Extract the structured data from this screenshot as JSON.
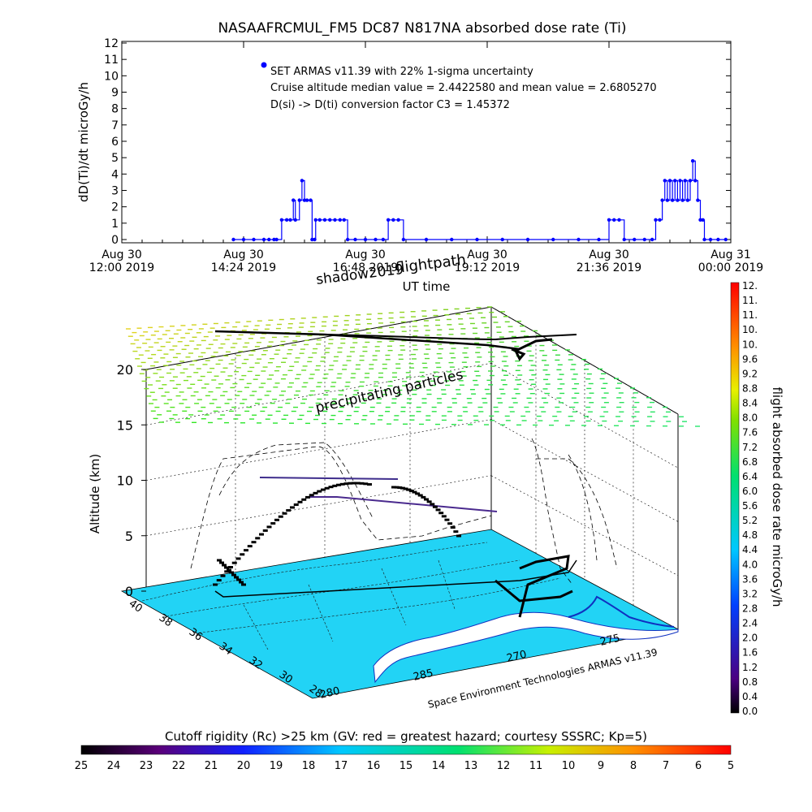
{
  "chart_data": [
    {
      "type": "scatter",
      "title": "NASAAFRCMUL_FM5 DC87 N817NA absorbed dose rate (Ti)",
      "xlabel": "UT time",
      "ylabel": "dD(Ti)/dt microGy/h",
      "ylim": [
        0,
        12
      ],
      "y_ticks": [
        "0",
        "1",
        "2",
        "3",
        "4",
        "5",
        "6",
        "7",
        "8",
        "9",
        "10",
        "11",
        "12"
      ],
      "x_ticks": [
        {
          "day": "Aug 30",
          "time": "12:00 2019"
        },
        {
          "day": "Aug 30",
          "time": "14:24 2019"
        },
        {
          "day": "Aug 30",
          "time": "16:48 2019"
        },
        {
          "day": "Aug 30",
          "time": "19:12 2019"
        },
        {
          "day": "Aug 30",
          "time": "21:36 2019"
        },
        {
          "day": "Aug 31",
          "time": "00:00 2019"
        }
      ],
      "x_range_hours": [
        12.0,
        24.0
      ],
      "annotations": [
        "SET ARMAS v11.39 with 22% 1-sigma uncertainty",
        "Cruise altitude median value = 2.4422580 and mean value = 2.6805270",
        "D(si) -> D(ti) conversion factor C3 = 1.45372"
      ],
      "series": [
        {
          "color": "#0000ff",
          "points": [
            [
              14.2,
              0
            ],
            [
              14.4,
              0
            ],
            [
              14.6,
              0
            ],
            [
              14.8,
              0
            ],
            [
              14.9,
              0
            ],
            [
              15.0,
              0
            ],
            [
              15.05,
              0
            ],
            [
              15.15,
              1.2
            ],
            [
              15.25,
              1.2
            ],
            [
              15.32,
              1.2
            ],
            [
              15.38,
              2.4
            ],
            [
              15.42,
              1.2
            ],
            [
              15.5,
              2.4
            ],
            [
              15.55,
              3.6
            ],
            [
              15.6,
              2.4
            ],
            [
              15.65,
              2.4
            ],
            [
              15.72,
              2.4
            ],
            [
              15.75,
              0
            ],
            [
              15.8,
              0
            ],
            [
              15.82,
              1.2
            ],
            [
              15.9,
              1.2
            ],
            [
              16.0,
              1.2
            ],
            [
              16.1,
              1.2
            ],
            [
              16.2,
              1.2
            ],
            [
              16.3,
              1.2
            ],
            [
              16.38,
              1.2
            ],
            [
              16.45,
              0
            ],
            [
              16.6,
              0
            ],
            [
              16.8,
              0
            ],
            [
              17.0,
              0
            ],
            [
              17.15,
              0
            ],
            [
              17.25,
              1.2
            ],
            [
              17.35,
              1.2
            ],
            [
              17.45,
              1.2
            ],
            [
              17.55,
              0
            ],
            [
              18.0,
              0
            ],
            [
              18.5,
              0
            ],
            [
              19.0,
              0
            ],
            [
              19.5,
              0
            ],
            [
              20.0,
              0
            ],
            [
              20.5,
              0
            ],
            [
              21.0,
              0
            ],
            [
              21.4,
              0
            ],
            [
              21.6,
              1.2
            ],
            [
              21.7,
              1.2
            ],
            [
              21.8,
              1.2
            ],
            [
              21.9,
              0
            ],
            [
              22.1,
              0
            ],
            [
              22.3,
              0
            ],
            [
              22.45,
              0
            ],
            [
              22.52,
              1.2
            ],
            [
              22.6,
              1.2
            ],
            [
              22.65,
              2.4
            ],
            [
              22.7,
              3.6
            ],
            [
              22.75,
              2.4
            ],
            [
              22.8,
              3.6
            ],
            [
              22.85,
              2.4
            ],
            [
              22.9,
              3.6
            ],
            [
              22.95,
              2.4
            ],
            [
              23.0,
              3.6
            ],
            [
              23.05,
              2.4
            ],
            [
              23.1,
              3.6
            ],
            [
              23.15,
              2.4
            ],
            [
              23.2,
              3.6
            ],
            [
              23.25,
              4.8
            ],
            [
              23.3,
              3.6
            ],
            [
              23.35,
              2.4
            ],
            [
              23.4,
              1.2
            ],
            [
              23.45,
              1.2
            ],
            [
              23.48,
              0
            ],
            [
              23.6,
              0
            ],
            [
              23.75,
              0
            ],
            [
              23.9,
              0
            ]
          ]
        }
      ]
    },
    {
      "type": "scatter",
      "labels": {
        "shadow": "shadow2019",
        "flightpath": "flightpath",
        "particles": "precipitating particles",
        "credit": "Space Environment Technologies ARMAS v11.39"
      },
      "z_axis": {
        "label": "Altitude (km)",
        "ticks": [
          "0",
          "5",
          "10",
          "15",
          "20"
        ],
        "range": [
          0,
          22
        ]
      },
      "lat_ticks": [
        "40",
        "38",
        "36",
        "34",
        "32",
        "30",
        "28"
      ],
      "lon_ticks": [
        "280",
        "285",
        "270",
        "275"
      ],
      "dose_colorbar": {
        "label": "flight absorbed dose rate microGy/h",
        "range": [
          0,
          12
        ],
        "ticks": [
          "0.0",
          "0.4",
          "0.8",
          "1.2",
          "1.6",
          "2.0",
          "2.4",
          "2.8",
          "3.2",
          "3.6",
          "4.0",
          "4.4",
          "4.8",
          "5.2",
          "5.6",
          "6.0",
          "6.4",
          "6.8",
          "7.2",
          "7.6",
          "8.0",
          "8.4",
          "8.8",
          "9.2",
          "9.6",
          "10.",
          "10.",
          "11.",
          "11.",
          "12."
        ]
      },
      "rigidity_colorbar": {
        "label": "Cutoff rigidity (Rc) >25 km (GV: red = greatest hazard; courtesy SSSRC; Kp=5)",
        "ticks": [
          "25",
          "24",
          "23",
          "22",
          "21",
          "20",
          "19",
          "18",
          "17",
          "16",
          "15",
          "14",
          "13",
          "12",
          "11",
          "10",
          "9",
          "8",
          "7",
          "6",
          "5"
        ]
      }
    }
  ]
}
